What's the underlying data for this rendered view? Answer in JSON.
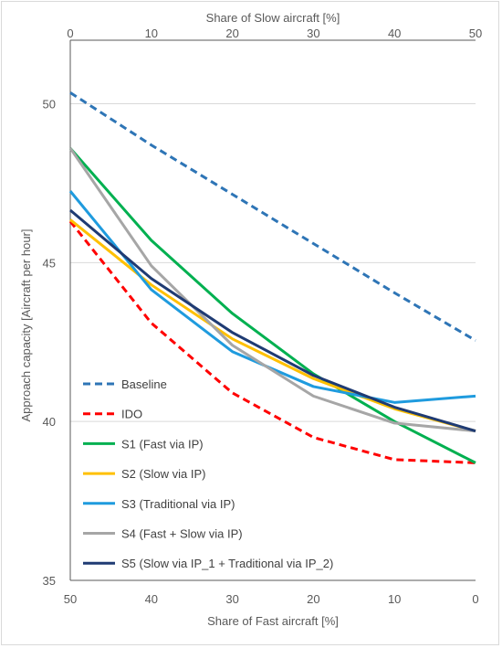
{
  "chart_data": {
    "type": "line",
    "top_xlabel": "Share of Slow aircraft [%]",
    "xlabel": "Share of Fast aircraft [%]",
    "ylabel": "Approach capacity [Aircraft per hour]",
    "x": [
      0,
      10,
      20,
      30,
      40,
      50
    ],
    "top_ticks": [
      "0",
      "10",
      "20",
      "30",
      "40",
      "50"
    ],
    "bottom_ticks": [
      "50",
      "40",
      "30",
      "20",
      "10",
      "0"
    ],
    "ylim": [
      35,
      52
    ],
    "yticks": [
      35,
      40,
      45,
      50
    ],
    "grid": "horizontal",
    "legend_position": "bottom-left",
    "series": [
      {
        "name": "Baseline",
        "values": [
          50.35,
          48.7,
          47.15,
          45.6,
          44.05,
          42.55
        ],
        "color": "#2E75B6",
        "dash": "dashed"
      },
      {
        "name": "IDO",
        "values": [
          46.3,
          43.1,
          40.9,
          39.5,
          38.8,
          38.7
        ],
        "color": "#FF0000",
        "dash": "dashed"
      },
      {
        "name": "S1 (Fast via IP)",
        "values": [
          48.6,
          45.7,
          43.4,
          41.5,
          40.0,
          38.7
        ],
        "color": "#00B050",
        "dash": "solid"
      },
      {
        "name": "S2 (Slow via IP)",
        "values": [
          46.35,
          44.3,
          42.6,
          41.35,
          40.4,
          39.7
        ],
        "color": "#FFC000",
        "dash": "solid"
      },
      {
        "name": "S3 (Traditional via IP)",
        "values": [
          47.25,
          44.15,
          42.2,
          41.1,
          40.6,
          40.8
        ],
        "color": "#1F9BDE",
        "dash": "solid"
      },
      {
        "name": "S4 (Fast + Slow via IP)",
        "values": [
          48.6,
          44.9,
          42.4,
          40.8,
          39.95,
          39.7
        ],
        "color": "#A6A6A6",
        "dash": "solid"
      },
      {
        "name": "S5 (Slow via IP_1 + Traditional via IP_2)",
        "values": [
          46.65,
          44.5,
          42.8,
          41.45,
          40.45,
          39.7
        ],
        "color": "#1F3B73",
        "dash": "solid"
      }
    ]
  }
}
